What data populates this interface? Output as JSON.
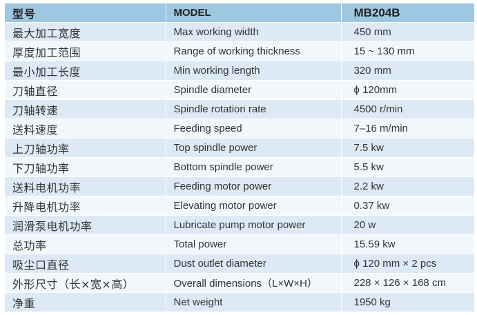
{
  "table": {
    "header": {
      "label_cn": "型号",
      "label_en": "MODEL",
      "model": "MB204B"
    },
    "rows": [
      {
        "cn": "最大加工宽度",
        "en": "Max working width",
        "value": "450 mm"
      },
      {
        "cn": "厚度加工范围",
        "en": "Range of working thickness",
        "value": "15 ~ 130 mm"
      },
      {
        "cn": "最小加工长度",
        "en": "Min working length",
        "value": "320 mm"
      },
      {
        "cn": "刀轴直径",
        "en": "Spindle diameter",
        "value": "ϕ 120mm"
      },
      {
        "cn": "刀轴转速",
        "en": "Spindle rotation rate",
        "value": "4500 r/min"
      },
      {
        "cn": "送料速度",
        "en": "Feeding speed",
        "value": "7–16 m/min"
      },
      {
        "cn": "上刀轴功率",
        "en": "Top spindle power",
        "value": "7.5 kw"
      },
      {
        "cn": "下刀轴功率",
        "en": "Bottom spindle power",
        "value": "5.5 kw"
      },
      {
        "cn": "送料电机功率",
        "en": "Feeding motor power",
        "value": "2.2 kw"
      },
      {
        "cn": "升降电机功率",
        "en": "Elevating motor power",
        "value": "0.37 kw"
      },
      {
        "cn": "润滑泵电机功率",
        "en": "Lubricate pump motor power",
        "value": "20 w"
      },
      {
        "cn": "总功率",
        "en": "Total power",
        "value": "15.59 kw"
      },
      {
        "cn": "吸尘口直径",
        "en": "Dust outlet diameter",
        "value": "ϕ 120 mm × 2 pcs"
      },
      {
        "cn": "外形尺寸（长×宽×高）",
        "en": "Overall dimensions（L×W×H）",
        "value": "228 × 126 × 168 cm"
      },
      {
        "cn": "净重",
        "en": "Net weight",
        "value": "1950 kg"
      }
    ]
  }
}
